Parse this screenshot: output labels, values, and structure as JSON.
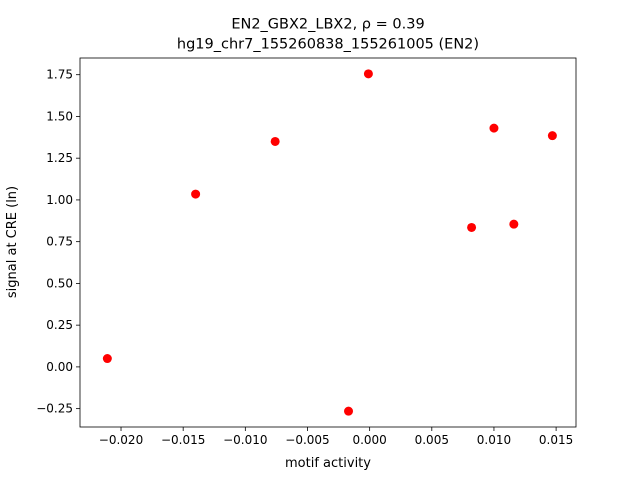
{
  "chart_data": {
    "type": "scatter",
    "title_line1": "EN2_GBX2_LBX2, ρ = 0.39",
    "title_line2": "hg19_chr7_155260838_155261005 (EN2)",
    "xlabel": "motif activity",
    "ylabel": "signal at CRE (ln)",
    "xlim": [
      -0.0233,
      0.0166
    ],
    "ylim": [
      -0.36,
      1.85
    ],
    "xticks": [
      -0.02,
      -0.015,
      -0.01,
      -0.005,
      0.0,
      0.005,
      0.01,
      0.015
    ],
    "xtick_labels": [
      "−0.020",
      "−0.015",
      "−0.010",
      "−0.005",
      "0.000",
      "0.005",
      "0.010",
      "0.015"
    ],
    "yticks": [
      -0.25,
      0.0,
      0.25,
      0.5,
      0.75,
      1.0,
      1.25,
      1.5,
      1.75
    ],
    "ytick_labels": [
      "−0.25",
      "0.00",
      "0.25",
      "0.50",
      "0.75",
      "1.00",
      "1.25",
      "1.50",
      "1.75"
    ],
    "grid": false,
    "marker_color": "#ff0000",
    "points": [
      {
        "x": -0.0211,
        "y": 0.05
      },
      {
        "x": -0.014,
        "y": 1.035
      },
      {
        "x": -0.0076,
        "y": 1.35
      },
      {
        "x": -0.0017,
        "y": -0.265
      },
      {
        "x": -0.0001,
        "y": 1.755
      },
      {
        "x": 0.0082,
        "y": 0.835
      },
      {
        "x": 0.01,
        "y": 1.43
      },
      {
        "x": 0.0116,
        "y": 0.855
      },
      {
        "x": 0.0147,
        "y": 1.385
      }
    ]
  }
}
